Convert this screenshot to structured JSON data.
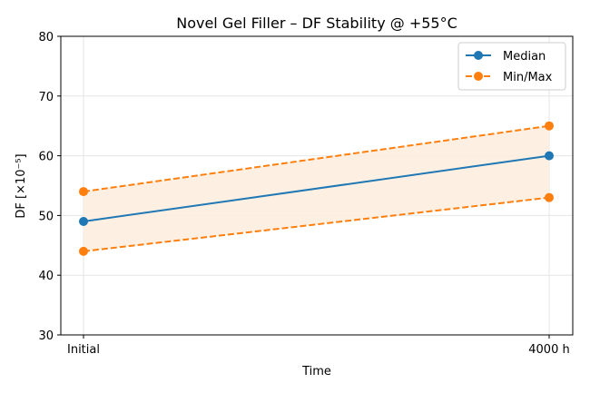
{
  "chart_data": {
    "type": "line",
    "title": "Novel Gel Filler – DF Stability @ +55°C",
    "xlabel": "Time",
    "ylabel": "DF [×10⁻⁵]",
    "categories": [
      "Initial",
      "4000 h"
    ],
    "ylim": [
      30,
      80
    ],
    "yticks": [
      30,
      40,
      50,
      60,
      70,
      80
    ],
    "grid": true,
    "legend_position": "top-right",
    "series": [
      {
        "name": "Median",
        "values": [
          49,
          60
        ],
        "color": "#1f77b4",
        "style": "solid"
      },
      {
        "name": "Min/Max",
        "min": [
          44,
          53
        ],
        "max": [
          54,
          65
        ],
        "color": "#ff7f0e",
        "style": "dashed"
      }
    ],
    "band_color": "#fdeee0"
  }
}
